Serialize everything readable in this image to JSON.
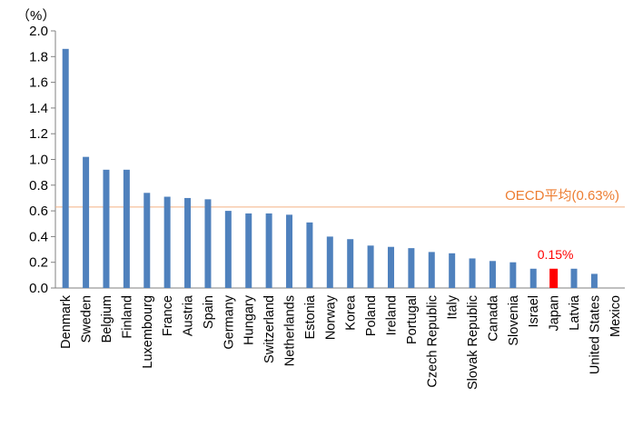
{
  "chart_data": {
    "type": "bar",
    "unit_label": "（%）",
    "categories": [
      "Denmark",
      "Sweden",
      "Belgium",
      "Finland",
      "Luxembourg",
      "France",
      "Austria",
      "Spain",
      "Germany",
      "Hungary",
      "Switzerland",
      "Netherlands",
      "Estonia",
      "Norway",
      "Korea",
      "Poland",
      "Ireland",
      "Portugal",
      "Czech Republic",
      "Italy",
      "Slovak Republic",
      "Canada",
      "Slovenia",
      "Israel",
      "Japan",
      "Latvia",
      "United States",
      "Mexico"
    ],
    "values": [
      1.86,
      1.02,
      0.92,
      0.92,
      0.74,
      0.71,
      0.7,
      0.69,
      0.6,
      0.58,
      0.58,
      0.57,
      0.51,
      0.4,
      0.38,
      0.33,
      0.32,
      0.31,
      0.28,
      0.27,
      0.23,
      0.21,
      0.2,
      0.15,
      0.15,
      0.15,
      0.11,
      0.0
    ],
    "ylim": [
      0,
      2.0
    ],
    "yticks": [
      "0.0",
      "0.2",
      "0.4",
      "0.6",
      "0.8",
      "1.0",
      "1.2",
      "1.4",
      "1.6",
      "1.8",
      "2.0"
    ],
    "highlight": {
      "category": "Japan",
      "label": "0.15%"
    },
    "reference_line": {
      "value": 0.63,
      "label": "OECD平均(0.63%)"
    },
    "colors": {
      "bar": "#4F81BD",
      "highlight": "#FF0000",
      "reference": "#F4B183",
      "reference_text": "#ED7D31",
      "axis": "#808080"
    }
  }
}
